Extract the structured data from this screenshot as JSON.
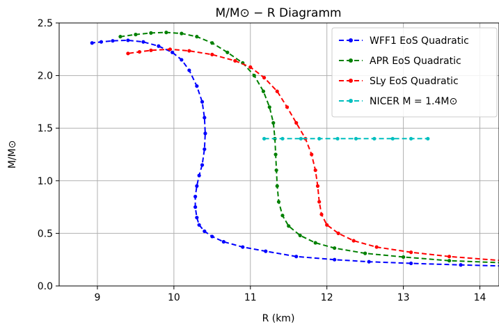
{
  "chart_data": {
    "type": "line",
    "title": "M/M⊙ − R Diagramm",
    "xlabel": "R (km)",
    "ylabel": "M/M⊙",
    "xlim": [
      8.5,
      14.25
    ],
    "ylim": [
      0.0,
      2.5
    ],
    "xticks": [
      9,
      10,
      11,
      12,
      13,
      14
    ],
    "yticks": [
      0.0,
      0.5,
      1.0,
      1.5,
      2.0,
      2.5
    ],
    "xtick_labels": [
      "9",
      "10",
      "11",
      "12",
      "13",
      "14"
    ],
    "ytick_labels": [
      "0.0",
      "0.5",
      "1.0",
      "1.5",
      "2.0",
      "2.5"
    ],
    "grid": true,
    "legend_position": "upper right",
    "series": [
      {
        "name": "WFF1 EoS Quadratic",
        "color": "#0000ff",
        "style": "dashed-dot-markers",
        "points": [
          [
            14.3,
            0.19
          ],
          [
            13.75,
            0.2
          ],
          [
            13.1,
            0.215
          ],
          [
            12.55,
            0.23
          ],
          [
            12.1,
            0.25
          ],
          [
            11.6,
            0.28
          ],
          [
            11.2,
            0.33
          ],
          [
            10.9,
            0.37
          ],
          [
            10.65,
            0.42
          ],
          [
            10.5,
            0.47
          ],
          [
            10.4,
            0.52
          ],
          [
            10.33,
            0.58
          ],
          [
            10.3,
            0.65
          ],
          [
            10.28,
            0.75
          ],
          [
            10.28,
            0.85
          ],
          [
            10.3,
            0.95
          ],
          [
            10.33,
            1.05
          ],
          [
            10.37,
            1.15
          ],
          [
            10.4,
            1.3
          ],
          [
            10.41,
            1.45
          ],
          [
            10.4,
            1.6
          ],
          [
            10.37,
            1.75
          ],
          [
            10.3,
            1.9
          ],
          [
            10.2,
            2.05
          ],
          [
            10.1,
            2.15
          ],
          [
            9.98,
            2.22
          ],
          [
            9.8,
            2.28
          ],
          [
            9.6,
            2.32
          ],
          [
            9.4,
            2.335
          ],
          [
            9.2,
            2.33
          ],
          [
            9.05,
            2.32
          ],
          [
            8.93,
            2.31
          ]
        ]
      },
      {
        "name": "APR EoS Quadratic",
        "color": "#008000",
        "style": "dashed-dot-markers",
        "points": [
          [
            14.3,
            0.22
          ],
          [
            13.6,
            0.24
          ],
          [
            13.0,
            0.275
          ],
          [
            12.5,
            0.31
          ],
          [
            12.1,
            0.36
          ],
          [
            11.85,
            0.41
          ],
          [
            11.65,
            0.48
          ],
          [
            11.5,
            0.57
          ],
          [
            11.42,
            0.67
          ],
          [
            11.37,
            0.8
          ],
          [
            11.35,
            0.95
          ],
          [
            11.34,
            1.1
          ],
          [
            11.33,
            1.25
          ],
          [
            11.32,
            1.4
          ],
          [
            11.3,
            1.55
          ],
          [
            11.25,
            1.7
          ],
          [
            11.17,
            1.85
          ],
          [
            11.05,
            2.0
          ],
          [
            10.9,
            2.12
          ],
          [
            10.7,
            2.22
          ],
          [
            10.5,
            2.31
          ],
          [
            10.3,
            2.37
          ],
          [
            10.1,
            2.4
          ],
          [
            9.9,
            2.41
          ],
          [
            9.7,
            2.405
          ],
          [
            9.5,
            2.39
          ],
          [
            9.3,
            2.37
          ]
        ]
      },
      {
        "name": "SLy EoS Quadratic",
        "color": "#ff0000",
        "style": "dashed-dot-markers",
        "points": [
          [
            14.3,
            0.24
          ],
          [
            13.6,
            0.28
          ],
          [
            13.1,
            0.32
          ],
          [
            12.65,
            0.37
          ],
          [
            12.35,
            0.43
          ],
          [
            12.15,
            0.5
          ],
          [
            12.0,
            0.58
          ],
          [
            11.93,
            0.68
          ],
          [
            11.9,
            0.8
          ],
          [
            11.88,
            0.95
          ],
          [
            11.85,
            1.1
          ],
          [
            11.8,
            1.25
          ],
          [
            11.72,
            1.4
          ],
          [
            11.6,
            1.55
          ],
          [
            11.48,
            1.7
          ],
          [
            11.35,
            1.85
          ],
          [
            11.18,
            1.98
          ],
          [
            11.0,
            2.08
          ],
          [
            10.8,
            2.14
          ],
          [
            10.5,
            2.2
          ],
          [
            10.2,
            2.235
          ],
          [
            9.95,
            2.25
          ],
          [
            9.7,
            2.24
          ],
          [
            9.55,
            2.225
          ],
          [
            9.4,
            2.21
          ]
        ]
      },
      {
        "name": "NICER $M = 1.4M_{\\odot}$",
        "color": "#00bfbf",
        "style": "dashed-dot-markers",
        "points": [
          [
            11.18,
            1.4
          ],
          [
            11.42,
            1.4
          ],
          [
            11.66,
            1.4
          ],
          [
            11.9,
            1.4
          ],
          [
            12.14,
            1.4
          ],
          [
            12.38,
            1.4
          ],
          [
            12.62,
            1.4
          ],
          [
            12.86,
            1.4
          ],
          [
            13.1,
            1.4
          ],
          [
            13.32,
            1.4
          ]
        ]
      }
    ],
    "legend": [
      {
        "label": "WFF1 EoS Quadratic",
        "color": "#0000ff"
      },
      {
        "label": "APR EoS Quadratic",
        "color": "#008000"
      },
      {
        "label": "SLy EoS Quadratic",
        "color": "#ff0000"
      },
      {
        "label": "NICER M = 1.4M⊙",
        "color": "#00bfbf"
      }
    ]
  }
}
